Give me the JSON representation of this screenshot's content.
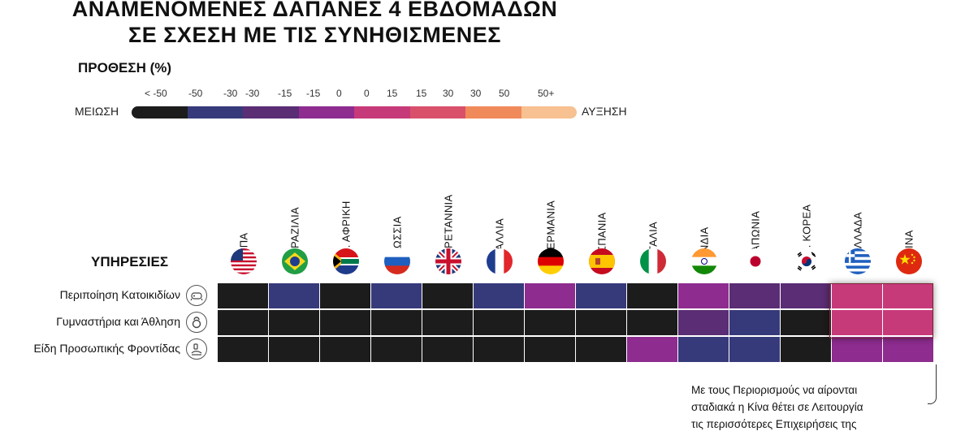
{
  "title_lines": [
    "ΑΝΑΜΕΝΟΜΕΝΕΣ ΔΑΠΑΝΕΣ 4 ΕΒΔΟΜΑΔΩΝ",
    "ΣΕ ΣΧΕΣΗ ΜΕ ΤΙΣ ΣΥΝΗΘΙΣΜΕΝΕΣ"
  ],
  "legend": {
    "title": "ΠΡΟΘΕΣΗ (%)",
    "low_label": "ΜΕΙΩΣΗ",
    "high_label": "ΑΥΞΗΣΗ",
    "tick_labels": [
      "< -50",
      "-50",
      "-30",
      "-30",
      "-15",
      "-15",
      "0",
      "0",
      "15",
      "15",
      "30",
      "30",
      "50",
      "50+"
    ],
    "bins": [
      {
        "range": "< -50",
        "color": "#1c1c1c"
      },
      {
        "range": "-50 -30",
        "color": "#363a7a"
      },
      {
        "range": "-30 -15",
        "color": "#5a2d74"
      },
      {
        "range": "-15 0",
        "color": "#8e2c90"
      },
      {
        "range": "0 15",
        "color": "#c73a7a"
      },
      {
        "range": "15 30",
        "color": "#d9506b"
      },
      {
        "range": "30 50",
        "color": "#f08a5a"
      },
      {
        "range": "50+",
        "color": "#f7c191"
      }
    ]
  },
  "chart_data": {
    "type": "heatmap",
    "title": "ΑΝΑΜΕΝΟΜΕΝΕΣ ΔΑΠΑΝΕΣ 4 ΕΒΔΟΜΑΔΩΝ ΣΕ ΣΧΕΣΗ ΜΕ ΤΙΣ ΣΥΝΗΘΙΣΜΕΝΕΣ",
    "columns_label": "",
    "rows_label": "ΥΠΗΡΕΣΙΕΣ",
    "countries": [
      "ΗΠΑ",
      "ΒΡΑΖΙΛΙΑ",
      "Ν. ΑΦΡΙΚΗ",
      "ΡΩΣΣΙΑ",
      "ΒΡΕΤΑΝΝΙΑ",
      "ΓΑΛΛΙΑ",
      "ΓΕΡΜΑΝΙΑ",
      "ΙΣΠΑΝΙΑ",
      "ΙΤΑΛΙΑ",
      "ΙΝΔΙΑ",
      "ΙΑΠΩΝΙΑ",
      "Ν. ΚΟΡΕΑ",
      "ΕΛΛΑΔΑ",
      "ΚΙΝΑ"
    ],
    "flags": [
      "us",
      "br",
      "za",
      "ru",
      "gb",
      "fr",
      "de",
      "es",
      "it",
      "in",
      "jp",
      "kr",
      "gr",
      "cn"
    ],
    "rows": [
      {
        "name": "Περιποίηση Κατοικιδίων",
        "icon": "pet-grooming-icon",
        "bins": [
          "< -50",
          "-50 -30",
          "< -50",
          "-50 -30",
          "< -50",
          "-50 -30",
          "-15 0",
          "-50 -30",
          "< -50",
          "-15 0",
          "-30 -15",
          "-30 -15",
          "0 15",
          "0 15"
        ]
      },
      {
        "name": "Γυμναστήρια και Άθληση",
        "icon": "kettlebell-icon",
        "bins": [
          "< -50",
          "< -50",
          "< -50",
          "< -50",
          "< -50",
          "< -50",
          "< -50",
          "< -50",
          "< -50",
          "-30 -15",
          "-50 -30",
          "< -50",
          "0 15",
          "0 15"
        ]
      },
      {
        "name": "Είδη Προσωπικής Φροντίδας",
        "icon": "personal-care-icon",
        "bins": [
          "< -50",
          "< -50",
          "< -50",
          "< -50",
          "< -50",
          "< -50",
          "< -50",
          "< -50",
          "-15 0",
          "-50 -30",
          "-50 -30",
          "< -50",
          "-15 0",
          "-15 0"
        ]
      }
    ],
    "highlighted_countries": [
      "ΕΛΛΑΔΑ",
      "ΚΙΝΑ"
    ]
  },
  "note_lines": [
    "Με τους Περιορισμούς να αίρονται",
    "σταδιακά η Κίνα θέτει σε Λειτουργία",
    "τις περισσότερες Επιχειρήσεις της"
  ]
}
